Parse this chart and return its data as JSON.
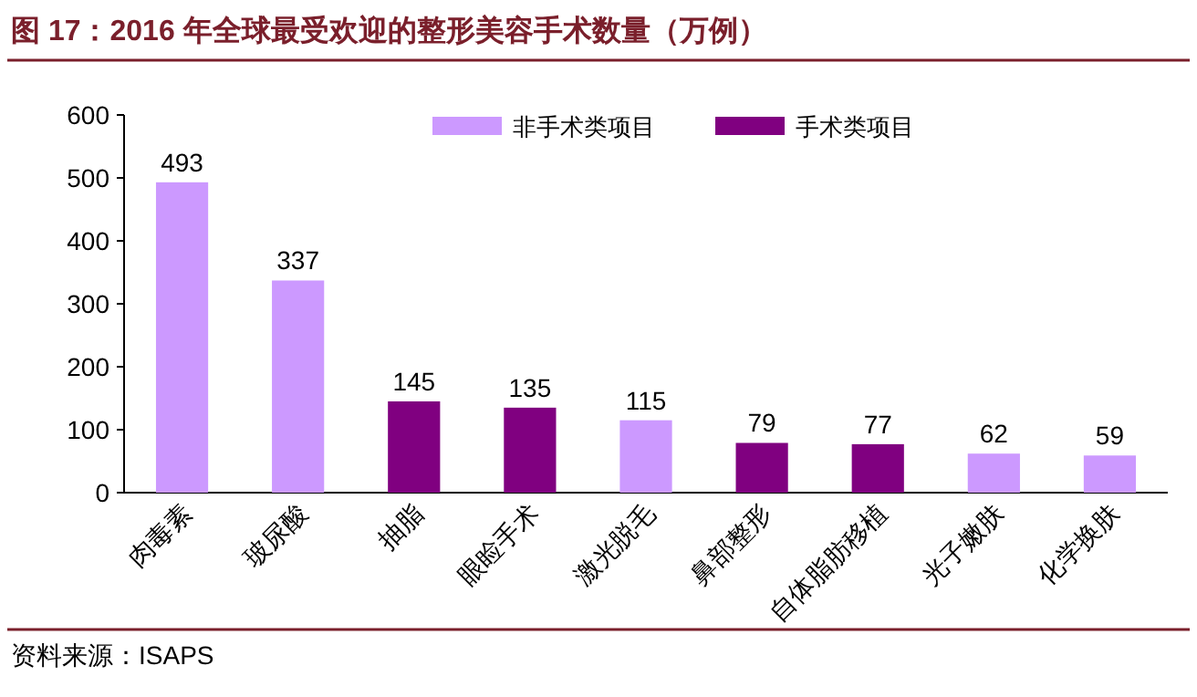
{
  "chart_data": {
    "type": "bar",
    "title": "图 17：2016 年全球最受欢迎的整形美容手术数量（万例）",
    "categories": [
      "肉毒素",
      "玻尿酸",
      "抽脂",
      "眼睑手术",
      "激光脱毛",
      "鼻部整形",
      "自体脂肪移植",
      "光子嫩肤",
      "化学换肤"
    ],
    "series": [
      {
        "name": "非手术类项目",
        "color": "#cc99ff",
        "values": [
          493,
          337,
          null,
          null,
          115,
          null,
          null,
          62,
          59
        ]
      },
      {
        "name": "手术类项目",
        "color": "#800080",
        "values": [
          null,
          null,
          145,
          135,
          null,
          79,
          77,
          null,
          null
        ]
      }
    ],
    "ylim": [
      0,
      600
    ],
    "yticks": [
      0,
      100,
      200,
      300,
      400,
      500,
      600
    ],
    "data_labels": true,
    "legend": "top",
    "grid": false,
    "annotations": [
      "资料来源：ISAPS"
    ]
  }
}
